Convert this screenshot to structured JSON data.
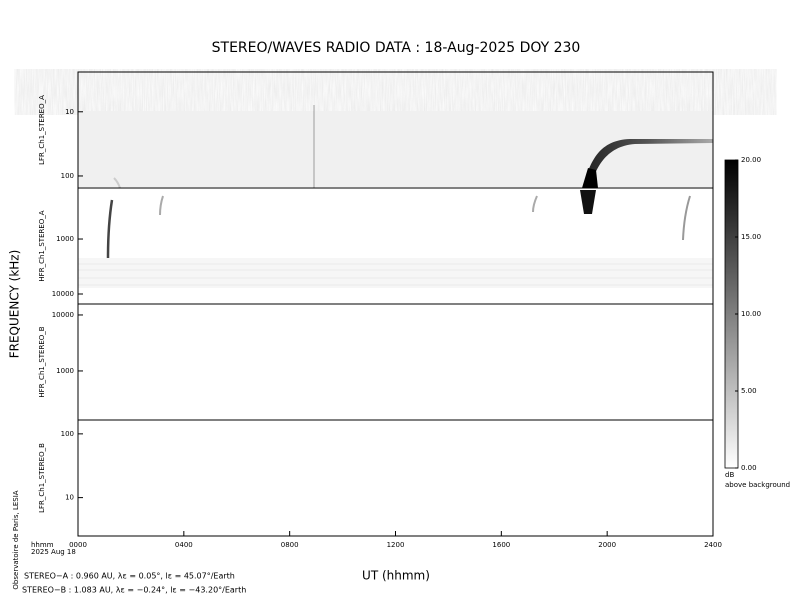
{
  "title": "STEREO/WAVES  RADIO  DATA : 18-Aug-2025  DOY 230",
  "y_label": "FREQUENCY (kHz)",
  "x_label": "UT (hhmm)",
  "x_corner": [
    "hhmm",
    "2025 Aug 18"
  ],
  "credit": "Observatoire de Paris, LESIA",
  "footer": [
    "STEREO−A : 0.960 AU, λε = 0.05°, lε = 45.07°/Earth",
    "STEREO−B : 1.083 AU, λε = −0.24°, lε = −43.20°/Earth"
  ],
  "chart_data": [
    {
      "type": "spectrogram",
      "y_label": "LFR_Ch1_STEREO_A",
      "log_scale": true,
      "ylim": [
        2.4,
        154
      ],
      "y_increases": "down",
      "yticks": [
        10,
        100
      ]
    },
    {
      "type": "spectrogram",
      "y_label": "HFR_Ch1_STEREO_A",
      "log_scale": true,
      "ylim": [
        118,
        15200
      ],
      "y_increases": "down",
      "yticks": [
        1000,
        10000
      ]
    },
    {
      "type": "spectrogram",
      "y_label": "HFR_Ch1_STEREO_B",
      "log_scale": true,
      "ylim": [
        133,
        15700
      ],
      "y_increases": "up",
      "yticks": [
        1000,
        10000
      ]
    },
    {
      "type": "spectrogram",
      "y_label": "LFR_Ch1_STEREO_B",
      "log_scale": true,
      "ylim": [
        2.5,
        165
      ],
      "y_increases": "up",
      "yticks": [
        10,
        100
      ],
      "xlim": [
        0,
        24
      ],
      "xticks": [
        {
          "value": 0,
          "label": "0000"
        },
        {
          "value": 4,
          "label": "0400"
        },
        {
          "value": 8,
          "label": "0800"
        },
        {
          "value": 12,
          "label": "1200"
        },
        {
          "value": 16,
          "label": "1600"
        },
        {
          "value": 20,
          "label": "2000"
        },
        {
          "value": 24,
          "label": "2400"
        }
      ]
    },
    {
      "type": "colorbar",
      "label": "dB",
      "sublabel": "above background",
      "ylim": [
        0,
        20
      ],
      "yticks": [
        {
          "value": 0,
          "label": "0.00"
        },
        {
          "value": 5,
          "label": "5.00"
        },
        {
          "value": 10,
          "label": "10.00"
        },
        {
          "value": 15,
          "label": "15.00"
        },
        {
          "value": 20,
          "label": "20.00"
        }
      ]
    }
  ]
}
